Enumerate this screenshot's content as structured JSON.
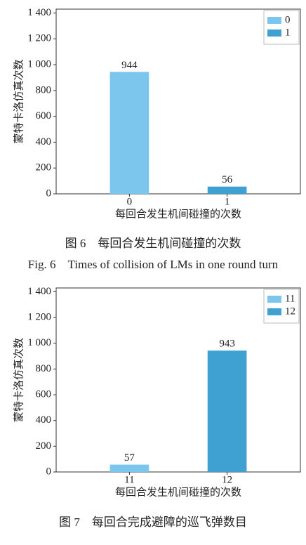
{
  "chart_data": [
    {
      "type": "bar",
      "categories": [
        "0",
        "1"
      ],
      "series": [
        {
          "name": "0",
          "color": "#7cc6ee",
          "values": [
            944,
            null
          ]
        },
        {
          "name": "1",
          "color": "#3fa0d2",
          "values": [
            null,
            56
          ]
        }
      ],
      "ylim": [
        0,
        1430
      ],
      "yticks": [
        0,
        200,
        400,
        600,
        800,
        {
          "value": 1000,
          "label": "1 000"
        },
        {
          "value": 1200,
          "label": "1 200"
        },
        {
          "value": 1400,
          "label": "1 400"
        }
      ],
      "y_label": "蒙特卡洛仿真次数",
      "x_label": "每回合发生机间碰撞的次数",
      "legend": "upper right",
      "grid": false,
      "caption": "图 6　每回合发生机间碰撞的次数",
      "caption_en": "Fig. 6　Times of collision of LMs in one round turn"
    },
    {
      "type": "bar",
      "categories": [
        "11",
        "12"
      ],
      "series": [
        {
          "name": "11",
          "color": "#7cc6ee",
          "values": [
            57,
            null
          ]
        },
        {
          "name": "12",
          "color": "#3fa0d2",
          "values": [
            null,
            943
          ]
        }
      ],
      "ylim": [
        0,
        1430
      ],
      "yticks": [
        0,
        200,
        400,
        600,
        800,
        {
          "value": 1000,
          "label": "1 000"
        },
        {
          "value": 1200,
          "label": "1 200"
        },
        {
          "value": 1400,
          "label": "1 400"
        }
      ],
      "y_label": "蒙特卡洛仿真次数",
      "x_label": "每回合发生机间碰撞的次数",
      "legend": "upper right",
      "grid": false,
      "caption": "图 7　每回合完成避障的巡飞弹数目"
    }
  ]
}
